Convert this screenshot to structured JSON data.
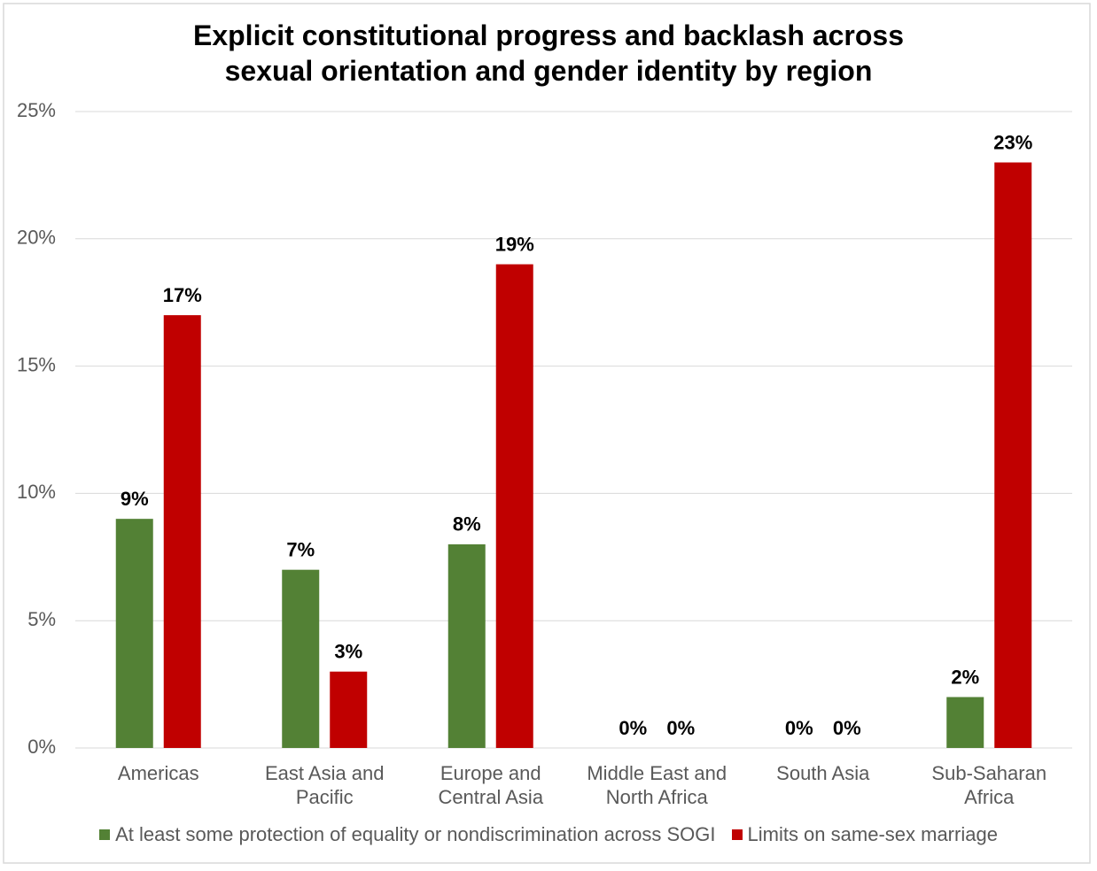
{
  "chart_data": {
    "type": "bar",
    "title": "Explicit constitutional progress and backlash across sexual orientation and gender identity by region",
    "categories": [
      "Americas",
      "East Asia and Pacific",
      "Europe and Central Asia",
      "Middle East and North Africa",
      "South Asia",
      "Sub-Saharan Africa"
    ],
    "series": [
      {
        "name": "At least some protection of equality or nondiscrimination across SOGI",
        "color": "#538135",
        "values": [
          9,
          7,
          8,
          0,
          0,
          2
        ],
        "value_labels": [
          "9%",
          "7%",
          "8%",
          "0%",
          "0%",
          "2%"
        ]
      },
      {
        "name": "Limits on same-sex marriage",
        "color": "#c00000",
        "values": [
          17,
          3,
          19,
          0,
          0,
          23
        ],
        "value_labels": [
          "17%",
          "3%",
          "19%",
          "0%",
          "0%",
          "23%"
        ]
      }
    ],
    "ylim": [
      0,
      25
    ],
    "yticks": [
      {
        "value": 0,
        "label": "0%"
      },
      {
        "value": 5,
        "label": "5%"
      },
      {
        "value": 10,
        "label": "10%"
      },
      {
        "value": 15,
        "label": "15%"
      },
      {
        "value": 20,
        "label": "20%"
      },
      {
        "value": 25,
        "label": "25%"
      }
    ],
    "grid": true,
    "legend": "bottom"
  }
}
